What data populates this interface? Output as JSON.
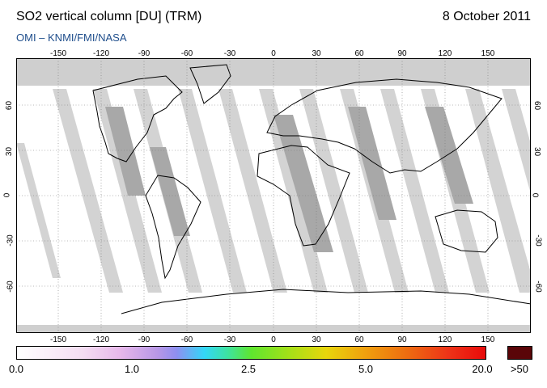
{
  "header": {
    "title": "SO2 vertical column [DU] (TRM)",
    "date": "8 October 2011",
    "credit": "OMI  –  KNMI/FMI/NASA"
  },
  "map": {
    "lon_ticks": [
      "-150",
      "-120",
      "-90",
      "-60",
      "-30",
      "0",
      "30",
      "60",
      "90",
      "120",
      "150"
    ],
    "lat_ticks": [
      "60",
      "30",
      "0",
      "-30",
      "-60"
    ],
    "colors": {
      "ocean": "#ffffff",
      "land_outline": "#000000",
      "swath_light": "#d3d3d3",
      "swath_dark": "#a8a8a8",
      "polar": "#cfcfcf"
    }
  },
  "colorbar": {
    "labels": [
      "0.0",
      "1.0",
      "2.5",
      "5.0",
      "20.0"
    ],
    "overflow_label": ">50",
    "overflow_color": "#5a0508"
  }
}
